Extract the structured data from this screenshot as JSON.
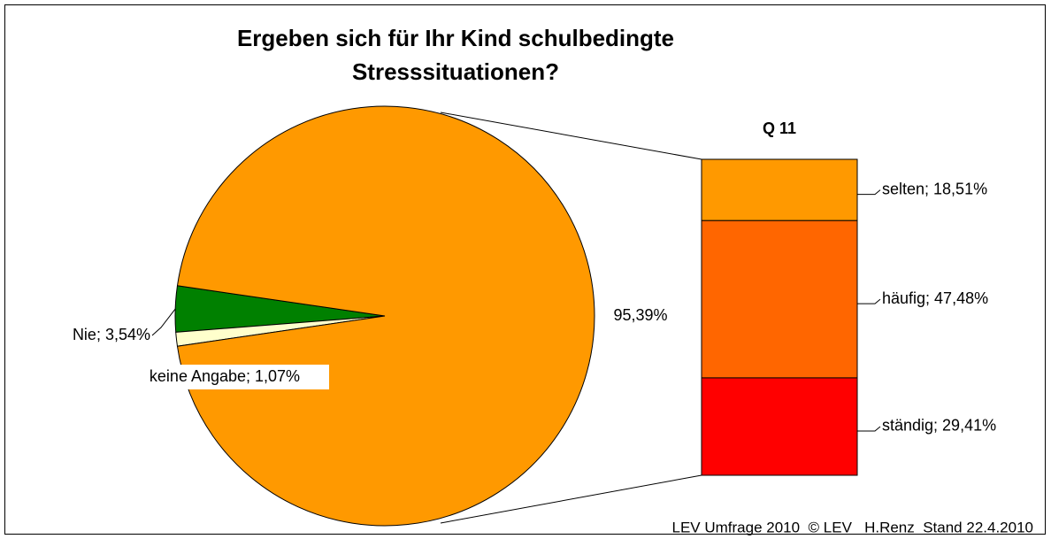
{
  "chart_data": [
    {
      "type": "pie",
      "title": "Ergeben sich für Ihr Kind schulbedingte Stresssituationen?",
      "values": [
        3.54,
        1.07,
        95.39
      ],
      "value_labels": [
        "Nie; 3,54%",
        "keine Angabe; 1,07%",
        "95,39%"
      ],
      "colors": [
        "#008000",
        "#FFFFCC",
        "#FF9900"
      ],
      "annotation": "LEV Umfrage 2010  © LEV   H.Renz  Stand 22.4.2010"
    },
    {
      "type": "bar",
      "stacked": true,
      "title": "Q 11",
      "values": [
        18.51,
        47.48,
        29.41
      ],
      "value_labels": [
        "selten; 18,51%",
        "häufig; 47,48%",
        "ständig; 29,41%"
      ],
      "colors": [
        "#FF9900",
        "#FF6600",
        "#FF0000"
      ]
    }
  ]
}
